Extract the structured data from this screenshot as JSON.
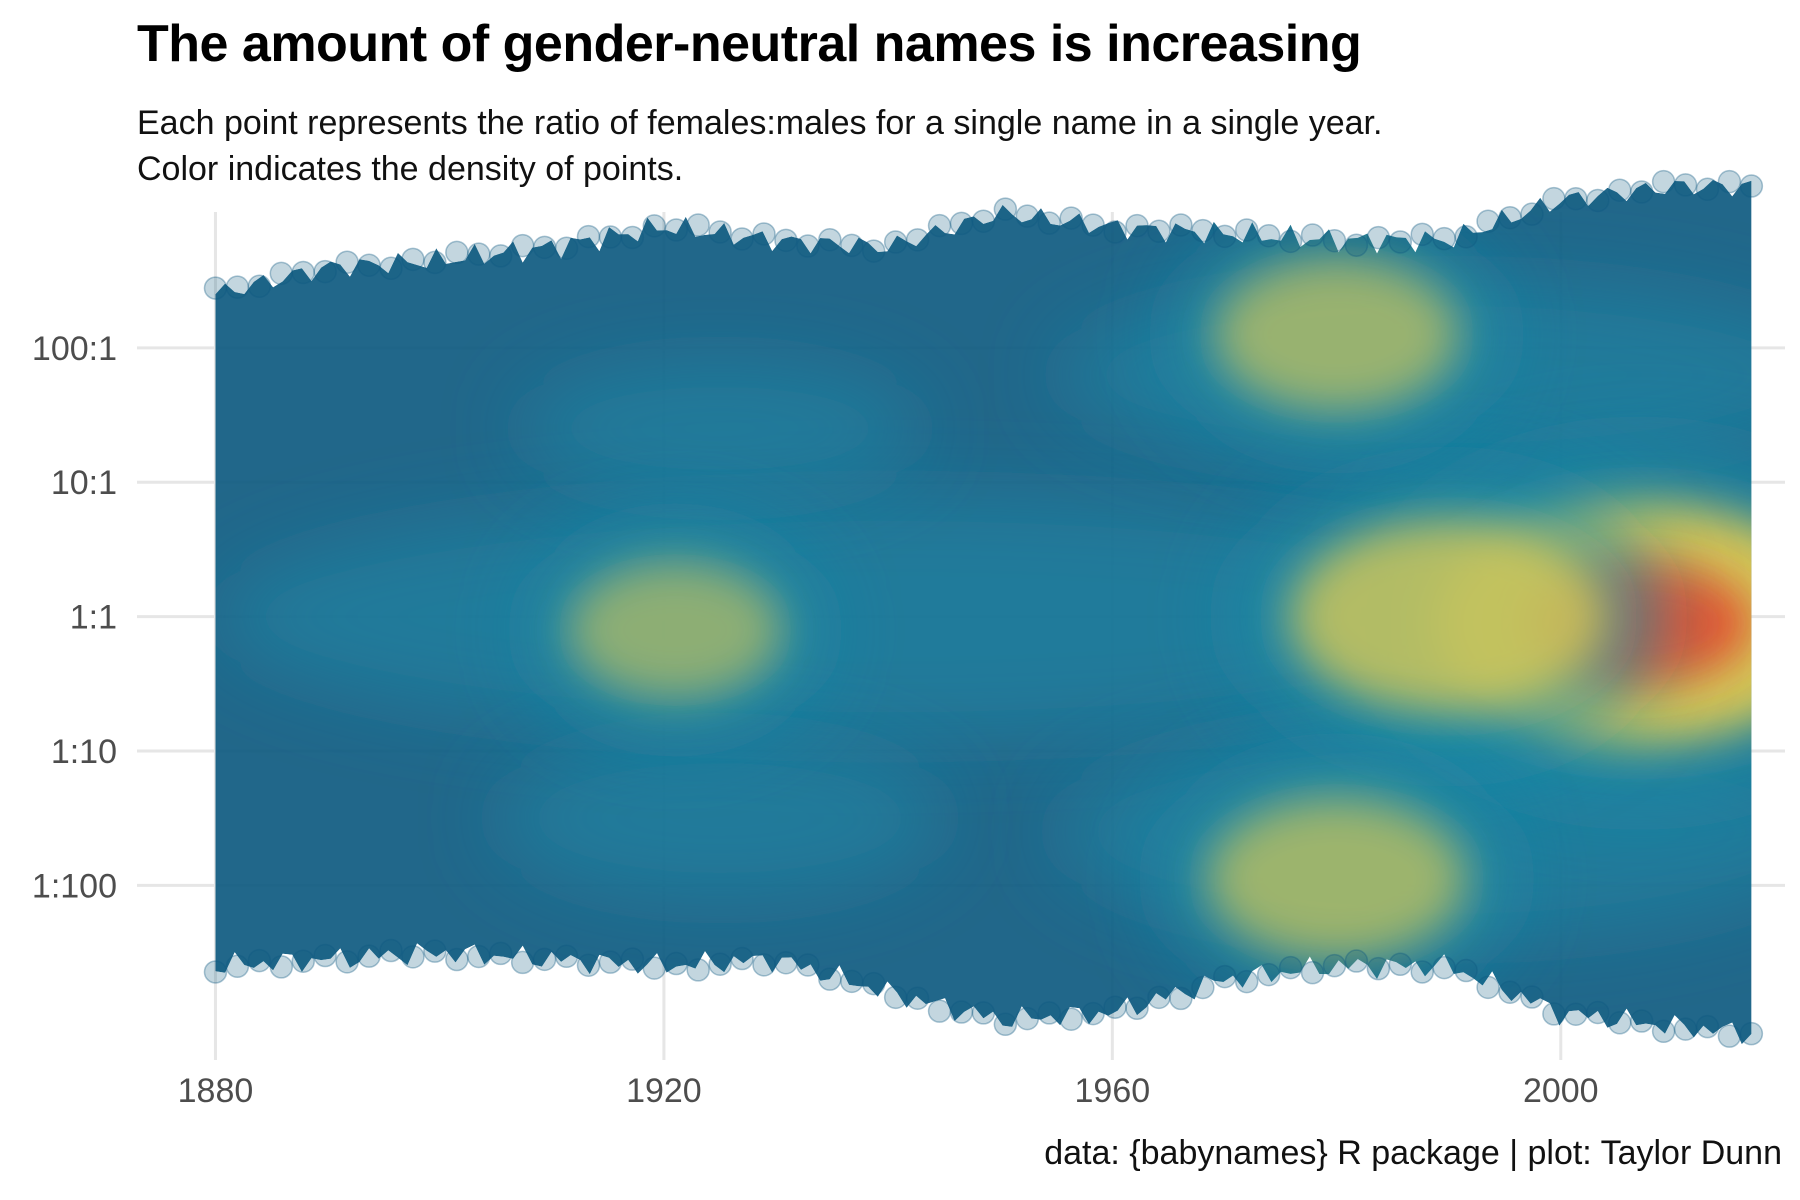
{
  "chart_data": {
    "type": "scatter",
    "title": "The amount of gender-neutral names is increasing",
    "subtitle_lines": [
      "Each point represents the ratio of females:males for a single name in a single year.",
      "Color indicates the density of points."
    ],
    "caption": "data: {babynames} R package | plot: Taylor Dunn",
    "xlabel": "",
    "ylabel": "",
    "x_scale": "linear",
    "y_scale": "log10",
    "xlim": [
      1873,
      2020
    ],
    "ylim": [
      -3.3,
      3.1
    ],
    "x_ticks": [
      {
        "value": 1880,
        "label": "1880"
      },
      {
        "value": 1920,
        "label": "1920"
      },
      {
        "value": 1960,
        "label": "1960"
      },
      {
        "value": 2000,
        "label": "2000"
      }
    ],
    "y_ticks": [
      {
        "value": 2,
        "label": "100:1"
      },
      {
        "value": 1,
        "label": "10:1"
      },
      {
        "value": 0,
        "label": "1:1"
      },
      {
        "value": -1,
        "label": "1:10"
      },
      {
        "value": -2,
        "label": "1:100"
      }
    ],
    "grid": true,
    "legend": "none",
    "envelope": {
      "years": [
        1880,
        1890,
        1900,
        1910,
        1920,
        1930,
        1940,
        1950,
        1960,
        1970,
        1980,
        1990,
        2000,
        2010,
        2017
      ],
      "upper": [
        2.4,
        2.6,
        2.65,
        2.75,
        2.9,
        2.8,
        2.75,
        3.0,
        2.9,
        2.85,
        2.8,
        2.8,
        3.1,
        3.2,
        3.2
      ],
      "lower": [
        -2.6,
        -2.55,
        -2.5,
        -2.55,
        -2.6,
        -2.55,
        -2.8,
        -3.0,
        -2.95,
        -2.7,
        -2.6,
        -2.6,
        -2.95,
        -3.05,
        -3.1
      ]
    },
    "density_peaks": [
      {
        "year": 2007,
        "log_ratio": -0.05,
        "density": 1.0
      },
      {
        "year": 1990,
        "log_ratio": 0.0,
        "density": 0.7
      },
      {
        "year": 1980,
        "log_ratio": -1.95,
        "density": 0.5
      },
      {
        "year": 1980,
        "log_ratio": 2.1,
        "density": 0.45
      },
      {
        "year": 1921,
        "log_ratio": -0.1,
        "density": 0.35
      }
    ],
    "colors": {
      "low_density": "#0e5a80",
      "mid_density": "#1f8ba8",
      "high_density": "#f2d24a",
      "peak_density": "#e8412b",
      "grid": "#e6e6e6"
    }
  }
}
